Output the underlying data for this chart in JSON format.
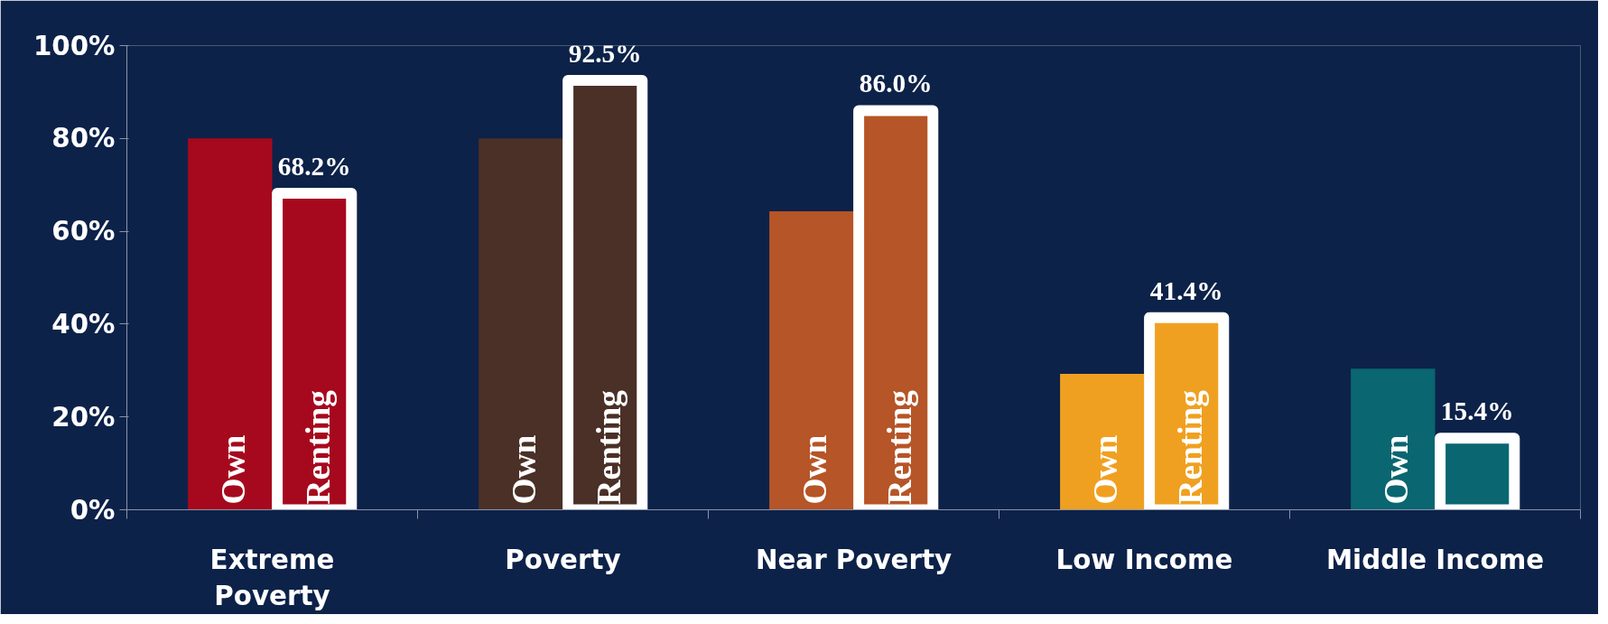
{
  "chart_data": {
    "type": "bar",
    "categories": [
      "Extreme\nPoverty",
      "Poverty",
      "Near Poverty",
      "Low Income",
      "Middle Income"
    ],
    "series": [
      {
        "name": "Own",
        "colors": [
          "#a6091e",
          "#4a3027",
          "#b65527",
          "#f0a020",
          "#0a6670"
        ],
        "values": [
          80,
          80,
          64.3,
          29.3,
          30.4
        ]
      },
      {
        "name": "Renting",
        "colors": [
          "#a6091e",
          "#4a3027",
          "#b65527",
          "#f0a020",
          "#0a6670"
        ],
        "values": [
          68.2,
          92.5,
          86.0,
          41.4,
          15.4
        ],
        "value_labels": [
          "68.2%",
          "92.5%",
          "86.0%",
          "41.4%",
          "15.4%"
        ]
      }
    ],
    "ylim": [
      0,
      100
    ],
    "yticks": [
      {
        "value": 0,
        "label": "0%"
      },
      {
        "value": 20,
        "label": "20%"
      },
      {
        "value": 40,
        "label": "40%"
      },
      {
        "value": 60,
        "label": "60%"
      },
      {
        "value": 80,
        "label": "80%"
      },
      {
        "value": 100,
        "label": "100%"
      }
    ],
    "grid": false
  }
}
